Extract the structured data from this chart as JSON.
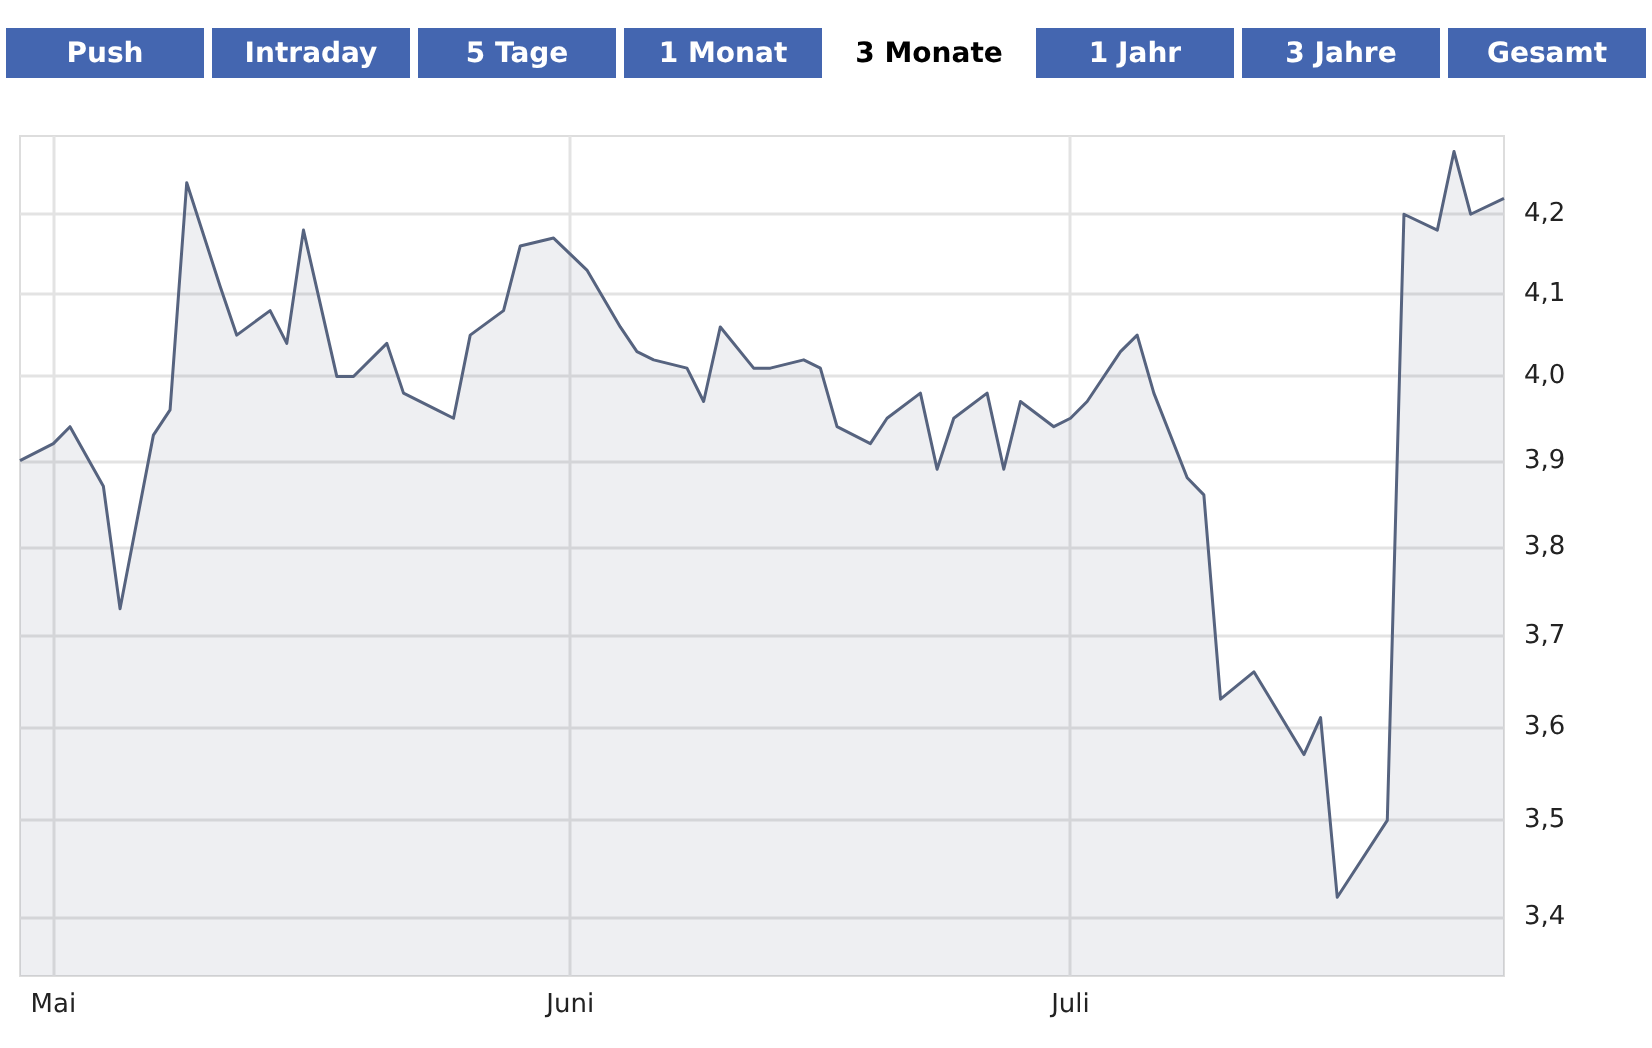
{
  "chart_data": {
    "type": "area",
    "color": "#56637f",
    "annotations": [
      "Push",
      "Intraday",
      "5 Tage",
      "1 Monat",
      "3 Monate",
      "1 Jahr",
      "3 Jahre",
      "Gesamt"
    ],
    "x": [
      "--04-29",
      "--05-01",
      "--05-02",
      "--05-04",
      "--05-05",
      "--05-07",
      "--05-08",
      "--05-09",
      "--05-11",
      "--05-12",
      "--05-14",
      "--05-15",
      "--05-16",
      "--05-18",
      "--05-19",
      "--05-21",
      "--05-22",
      "--05-24",
      "--05-25",
      "--05-26",
      "--05-28",
      "--05-29",
      "--05-31",
      "--06-01",
      "--06-02",
      "--06-04",
      "--06-05",
      "--06-06",
      "--06-08",
      "--06-09",
      "--06-10",
      "--06-12",
      "--06-13",
      "--06-15",
      "--06-16",
      "--06-17",
      "--06-19",
      "--06-20",
      "--06-22",
      "--06-23",
      "--06-24",
      "--06-26",
      "--06-27",
      "--06-28",
      "--06-30",
      "--07-01",
      "--07-02",
      "--07-04",
      "--07-05",
      "--07-06",
      "--07-08",
      "--07-09",
      "--07-10",
      "--07-12",
      "--07-13",
      "--07-15",
      "--07-16",
      "--07-17",
      "--07-20",
      "--07-21",
      "--07-23",
      "--07-24",
      "--07-25",
      "--07-27"
    ],
    "values": [
      3.9,
      3.92,
      3.94,
      3.87,
      3.73,
      3.93,
      3.96,
      4.24,
      4.11,
      4.05,
      4.08,
      4.04,
      4.18,
      4.0,
      4.0,
      4.04,
      3.98,
      3.96,
      3.95,
      4.05,
      4.08,
      4.16,
      4.17,
      4.15,
      4.13,
      4.06,
      4.03,
      4.02,
      4.01,
      3.97,
      4.06,
      4.01,
      4.01,
      4.02,
      4.01,
      3.94,
      3.92,
      3.95,
      3.98,
      3.89,
      3.95,
      3.98,
      3.89,
      3.97,
      3.94,
      3.95,
      3.97,
      4.03,
      4.05,
      3.98,
      3.88,
      3.86,
      3.63,
      3.66,
      3.63,
      3.57,
      3.61,
      3.42,
      3.5,
      4.2,
      4.18,
      4.28,
      4.2,
      4.22
    ],
    "log": true,
    "grid": true,
    "marker": "none",
    "xlim": [
      "--04-29",
      "--07-27"
    ],
    "xticks": [
      {
        "value": "--05-01",
        "label": "Mai"
      },
      {
        "value": "--06-01",
        "label": "Juni"
      },
      {
        "value": "--07-01",
        "label": "Juli"
      }
    ],
    "ylim": [
      3.34,
      4.3
    ],
    "yticks": [
      {
        "value": 3.4,
        "label": "3,4"
      },
      {
        "value": 3.5,
        "label": "3,5"
      },
      {
        "value": 3.6,
        "label": "3,6"
      },
      {
        "value": 3.7,
        "label": "3,7"
      },
      {
        "value": 3.8,
        "label": "3,8"
      },
      {
        "value": 3.9,
        "label": "3,9"
      },
      {
        "value": 4.0,
        "label": "4,0"
      },
      {
        "value": 4.1,
        "label": "4,1"
      },
      {
        "value": 4.2,
        "label": "4,2"
      }
    ]
  }
}
